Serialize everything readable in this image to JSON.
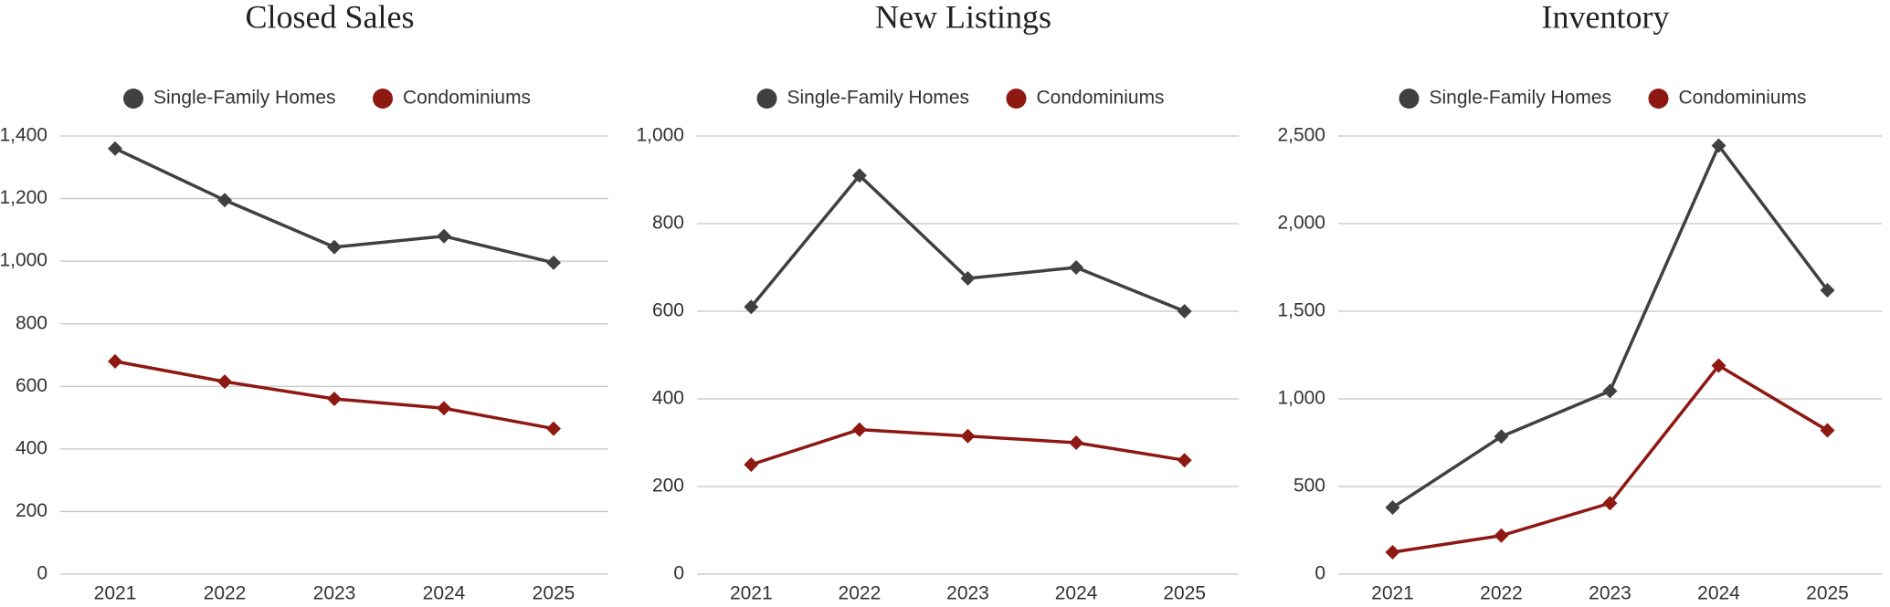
{
  "chart_data": [
    {
      "type": "line",
      "title": "Closed Sales",
      "categories": [
        "2021",
        "2022",
        "2023",
        "2024",
        "2025"
      ],
      "series": [
        {
          "name": "Single-Family Homes",
          "color": "#404040",
          "values": [
            1360,
            1195,
            1045,
            1080,
            995
          ]
        },
        {
          "name": "Condominiums",
          "color": "#8e1812",
          "values": [
            680,
            615,
            560,
            530,
            465
          ]
        }
      ],
      "ylim": [
        0,
        1400
      ],
      "yticks": [
        0,
        200,
        400,
        600,
        800,
        {
          "value": 1000,
          "label": "1,000"
        },
        {
          "value": 1200,
          "label": "1,200"
        },
        {
          "value": 1400,
          "label": "1,400"
        }
      ],
      "grid": true,
      "legend": "top"
    },
    {
      "type": "line",
      "title": "New Listings",
      "categories": [
        "2021",
        "2022",
        "2023",
        "2024",
        "2025"
      ],
      "series": [
        {
          "name": "Single-Family Homes",
          "color": "#404040",
          "values": [
            610,
            910,
            675,
            700,
            600
          ]
        },
        {
          "name": "Condominiums",
          "color": "#8e1812",
          "values": [
            250,
            330,
            315,
            300,
            260
          ]
        }
      ],
      "ylim": [
        0,
        1000
      ],
      "yticks": [
        0,
        200,
        400,
        600,
        800,
        {
          "value": 1000,
          "label": "1,000"
        }
      ],
      "grid": true,
      "legend": "top"
    },
    {
      "type": "line",
      "title": "Inventory",
      "categories": [
        "2021",
        "2022",
        "2023",
        "2024",
        "2025"
      ],
      "series": [
        {
          "name": "Single-Family Homes",
          "color": "#404040",
          "values": [
            380,
            785,
            1045,
            2445,
            1620
          ]
        },
        {
          "name": "Condominiums",
          "color": "#8e1812",
          "values": [
            125,
            220,
            405,
            1190,
            820
          ]
        }
      ],
      "ylim": [
        0,
        2500
      ],
      "yticks": [
        0,
        500,
        {
          "value": 1000,
          "label": "1,000"
        },
        {
          "value": 1500,
          "label": "1,500"
        },
        {
          "value": 2000,
          "label": "2,000"
        },
        {
          "value": 2500,
          "label": "2,500"
        }
      ],
      "grid": true,
      "legend": "top"
    }
  ]
}
